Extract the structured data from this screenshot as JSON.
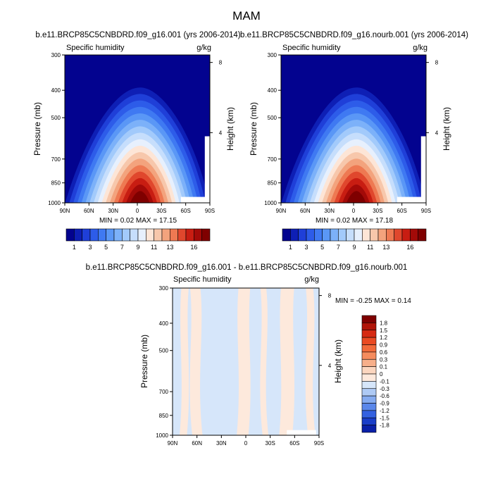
{
  "figure": {
    "title": "MAM"
  },
  "chart_data": [
    {
      "type": "heatmap",
      "title": "b.e11.BRCP85C5CNBDRD.f09_g16.001 (yrs 2006-2014)",
      "left_label": "Specific humidity",
      "units": "g/kg",
      "ylabel": "Pressure (mb)",
      "y2label": "Height (km)",
      "x_ticks": [
        "90N",
        "60N",
        "30N",
        "0",
        "30S",
        "60S",
        "90S"
      ],
      "y_ticks": [
        "300",
        "400",
        "500",
        "700",
        "850",
        "1000"
      ],
      "y2_ticks": [
        "8",
        "4"
      ],
      "stats": "MIN =  0.02  MAX =  17.15",
      "min": 0.02,
      "max": 17.15,
      "colorbar_labels": [
        "1",
        "3",
        "5",
        "7",
        "9",
        "11",
        "13",
        "16"
      ],
      "colorbar_colors": [
        "#03038f",
        "#0e1fb5",
        "#1f3fd8",
        "#2d5ce9",
        "#3f79f2",
        "#5a97f6",
        "#7cb1f9",
        "#a2cafb",
        "#c6defc",
        "#e7f0fd",
        "#fde5d6",
        "#f7c7ab",
        "#f3a37d",
        "#ee7952",
        "#e0472d",
        "#c81d12",
        "#a30a08",
        "#7f0000"
      ]
    },
    {
      "type": "heatmap",
      "title": "b.e11.BRCP85C5CNBDRD.f09_g16.nourb.001 (yrs 2006-2014)",
      "left_label": "Specific humidity",
      "units": "g/kg",
      "ylabel": "Pressure (mb)",
      "y2label": "Height (km)",
      "x_ticks": [
        "90N",
        "60N",
        "30N",
        "0",
        "30S",
        "60S",
        "90S"
      ],
      "y_ticks": [
        "300",
        "400",
        "500",
        "700",
        "850",
        "1000"
      ],
      "y2_ticks": [
        "8",
        "4"
      ],
      "stats": "MIN =  0.02  MAX =  17.18",
      "min": 0.02,
      "max": 17.18,
      "colorbar_labels": [
        "1",
        "3",
        "5",
        "7",
        "9",
        "11",
        "13",
        "16"
      ],
      "colorbar_colors": [
        "#03038f",
        "#0e1fb5",
        "#1f3fd8",
        "#2d5ce9",
        "#3f79f2",
        "#5a97f6",
        "#7cb1f9",
        "#a2cafb",
        "#c6defc",
        "#e7f0fd",
        "#fde5d6",
        "#f7c7ab",
        "#f3a37d",
        "#ee7952",
        "#e0472d",
        "#c81d12",
        "#a30a08",
        "#7f0000"
      ]
    },
    {
      "type": "heatmap",
      "title": "b.e11.BRCP85C5CNBDRD.f09_g16.001 - b.e11.BRCP85C5CNBDRD.f09_g16.nourb.001",
      "left_label": "Specific humidity",
      "units": "g/kg",
      "ylabel": "Pressure (mb)",
      "y2label": "Height (km)",
      "x_ticks": [
        "90N",
        "60N",
        "30N",
        "0",
        "30S",
        "60S",
        "90S"
      ],
      "y_ticks": [
        "300",
        "400",
        "500",
        "700",
        "850",
        "1000"
      ],
      "y2_ticks": [
        "8",
        "4"
      ],
      "stats": "MIN = -0.25  MAX =  0.14",
      "min": -0.25,
      "max": 0.14,
      "colorbar_labels": [
        "1.8",
        "1.5",
        "1.2",
        "0.9",
        "0.6",
        "0.3",
        "0.1",
        "0",
        "-0.1",
        "-0.3",
        "-0.6",
        "-0.9",
        "-1.2",
        "-1.5",
        "-1.8"
      ],
      "colorbar_colors": [
        "#7f0000",
        "#b01408",
        "#d62a12",
        "#ea4a22",
        "#f26a3a",
        "#f58c5e",
        "#f7af8a",
        "#fbd6bf",
        "#fde9dc",
        "#d6e6fa",
        "#aecaf5",
        "#85abf0",
        "#5a87ea",
        "#3461e0",
        "#1a3ec8",
        "#0a20a8",
        "#030a80"
      ]
    }
  ]
}
